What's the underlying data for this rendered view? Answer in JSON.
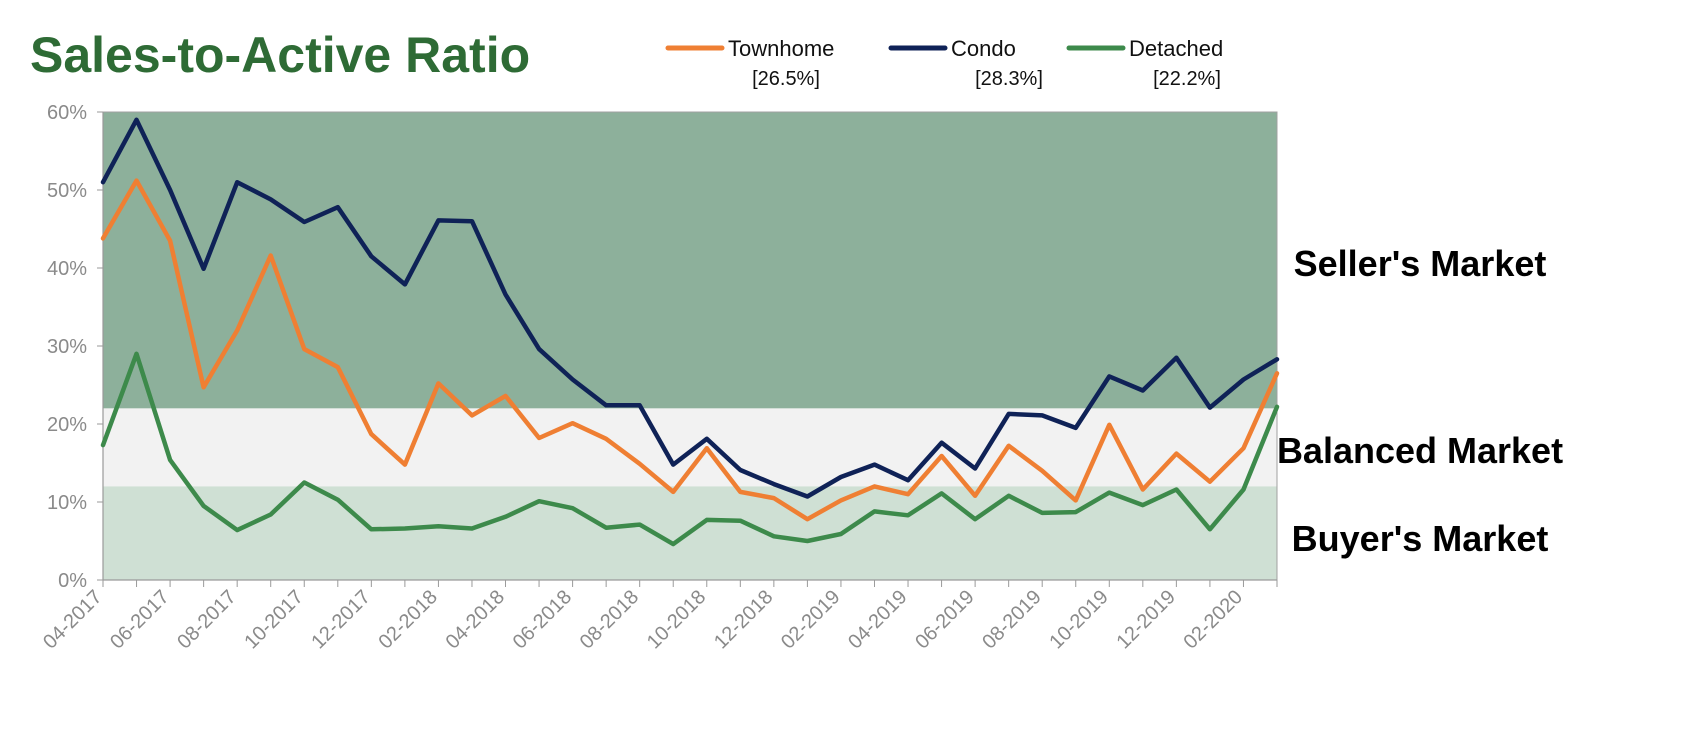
{
  "chart_data": {
    "type": "line",
    "title": "Sales-to-Active Ratio",
    "x": [
      "04-2017",
      "05-2017",
      "06-2017",
      "07-2017",
      "08-2017",
      "09-2017",
      "10-2017",
      "11-2017",
      "12-2017",
      "01-2018",
      "02-2018",
      "03-2018",
      "04-2018",
      "05-2018",
      "06-2018",
      "07-2018",
      "08-2018",
      "09-2018",
      "10-2018",
      "11-2018",
      "12-2018",
      "01-2019",
      "02-2019",
      "03-2019",
      "04-2019",
      "05-2019",
      "06-2019",
      "07-2019",
      "08-2019",
      "09-2019",
      "10-2019",
      "11-2019",
      "12-2019",
      "01-2020",
      "02-2020",
      "03-2020"
    ],
    "x_tick_labels": [
      "04-2017",
      "06-2017",
      "08-2017",
      "10-2017",
      "12-2017",
      "02-2018",
      "04-2018",
      "06-2018",
      "08-2018",
      "10-2018",
      "12-2018",
      "02-2019",
      "04-2019",
      "06-2019",
      "08-2019",
      "10-2019",
      "12-2019",
      "02-2020"
    ],
    "y_ticks": [
      "0%",
      "10%",
      "20%",
      "30%",
      "40%",
      "50%",
      "60%"
    ],
    "ylim": [
      0,
      60
    ],
    "series": [
      {
        "name": "Townhome",
        "color": "#ef7f33",
        "latest_label": "[26.5%]",
        "values": [
          43.8,
          51.2,
          43.5,
          24.7,
          32.0,
          41.6,
          29.6,
          27.3,
          18.7,
          14.8,
          25.2,
          21.1,
          23.6,
          18.2,
          20.1,
          18.1,
          14.9,
          11.3,
          16.9,
          11.3,
          10.5,
          7.8,
          10.2,
          12.0,
          11.0,
          15.9,
          10.8,
          17.2,
          14.0,
          10.2,
          19.9,
          11.6,
          16.2,
          12.6,
          16.9,
          26.5
        ]
      },
      {
        "name": "Condo",
        "color": "#0f2257",
        "latest_label": "[28.3%]",
        "values": [
          51.0,
          59.0,
          50.0,
          39.9,
          51.0,
          48.8,
          45.9,
          47.8,
          41.5,
          37.9,
          46.1,
          46.0,
          36.6,
          29.6,
          25.7,
          22.4,
          22.4,
          14.8,
          18.1,
          14.1,
          12.3,
          10.7,
          13.2,
          14.8,
          12.8,
          17.6,
          14.3,
          21.3,
          21.1,
          19.5,
          26.1,
          24.3,
          28.5,
          22.1,
          25.7,
          28.3
        ]
      },
      {
        "name": "Detached",
        "color": "#3d8a4b",
        "latest_label": "[22.2%]",
        "values": [
          17.3,
          29.0,
          15.4,
          9.5,
          6.4,
          8.4,
          12.5,
          10.3,
          6.5,
          6.6,
          6.9,
          6.6,
          8.1,
          10.1,
          9.2,
          6.7,
          7.1,
          4.6,
          7.7,
          7.6,
          5.6,
          5.0,
          5.9,
          8.8,
          8.3,
          11.1,
          7.8,
          10.8,
          8.6,
          8.7,
          11.2,
          9.6,
          11.6,
          6.5,
          11.6,
          22.2
        ]
      }
    ],
    "zones": [
      {
        "label": "Seller's Market",
        "from": 22,
        "to": 60,
        "color": "#8db09b"
      },
      {
        "label": "Balanced Market",
        "from": 12,
        "to": 22,
        "color": "#f2f2f2"
      },
      {
        "label": "Buyer's Market",
        "from": 0,
        "to": 12,
        "color": "#cfe0d4"
      }
    ],
    "grid": false,
    "legend_position": "top-center"
  }
}
